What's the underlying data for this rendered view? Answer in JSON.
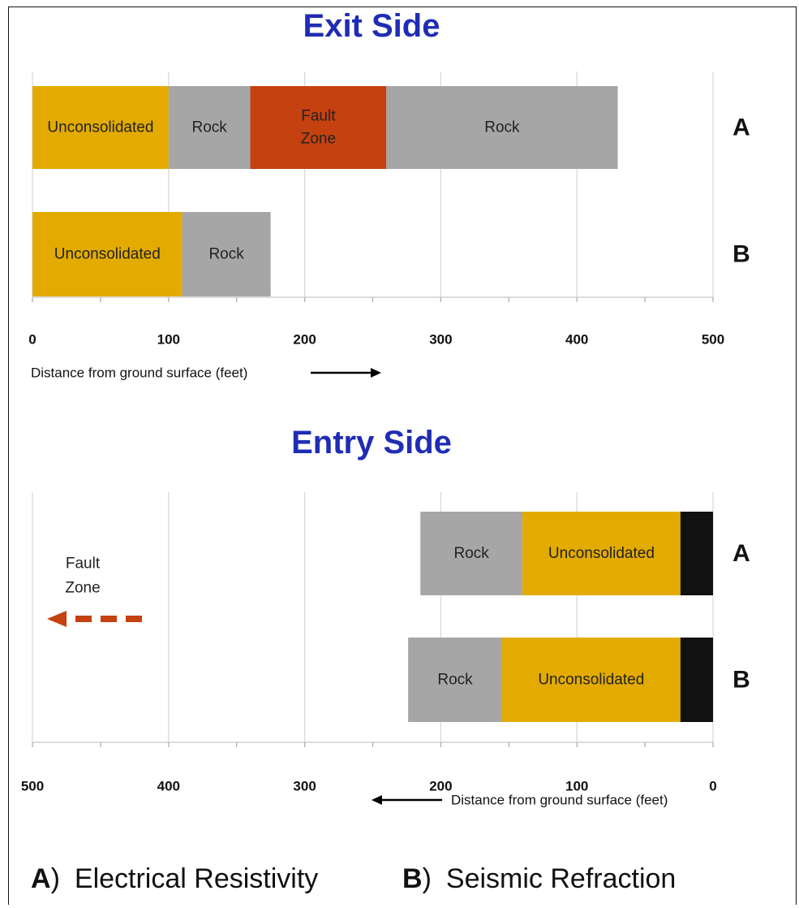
{
  "chart_data": [
    {
      "type": "bar",
      "orientation": "horizontal-stacked",
      "title": "Exit Side",
      "xlabel": "Distance from ground surface (feet)",
      "xlim": [
        0,
        500
      ],
      "x_ticks": [
        "0",
        "100",
        "200",
        "300",
        "400",
        "500"
      ],
      "grid": true,
      "rows": [
        {
          "name": "A",
          "segments": [
            {
              "label": "Unconsolidated",
              "start": 0,
              "end": 100,
              "color": "#e3ab00"
            },
            {
              "label": "Rock",
              "start": 100,
              "end": 160,
              "color": "#a6a6a6"
            },
            {
              "label": "Fault\nZone",
              "start": 160,
              "end": 260,
              "color": "#c5410f"
            },
            {
              "label": "Rock",
              "start": 260,
              "end": 430,
              "color": "#a6a6a6"
            }
          ]
        },
        {
          "name": "B",
          "segments": [
            {
              "label": "Unconsolidated",
              "start": 0,
              "end": 110,
              "color": "#e3ab00"
            },
            {
              "label": "Rock",
              "start": 110,
              "end": 175,
              "color": "#a6a6a6"
            }
          ]
        }
      ]
    },
    {
      "type": "bar",
      "orientation": "horizontal-stacked-reversed",
      "title": "Entry Side",
      "xlabel": "Distance from ground surface (feet)",
      "xlim": [
        500,
        0
      ],
      "x_ticks": [
        "500",
        "400",
        "300",
        "200",
        "100",
        "0"
      ],
      "grid": true,
      "annotation": {
        "text": "Fault\nZone",
        "arrow": "dashed-left",
        "color": "#c5410f"
      },
      "rows": [
        {
          "name": "A",
          "segments": [
            {
              "label": "",
              "start": 0,
              "end": 24,
              "color": "#111111"
            },
            {
              "label": "Unconsolidated",
              "start": 24,
              "end": 140,
              "color": "#e3ab00"
            },
            {
              "label": "Rock",
              "start": 140,
              "end": 215,
              "color": "#a6a6a6"
            }
          ]
        },
        {
          "name": "B",
          "segments": [
            {
              "label": "",
              "start": 0,
              "end": 24,
              "color": "#111111"
            },
            {
              "label": "Unconsolidated",
              "start": 24,
              "end": 155,
              "color": "#e3ab00"
            },
            {
              "label": "Rock",
              "start": 155,
              "end": 224,
              "color": "#a6a6a6"
            }
          ]
        }
      ]
    }
  ],
  "legend": [
    {
      "key": "A",
      "sep": ")",
      "label": "Electrical Resistivity"
    },
    {
      "key": "B",
      "sep": ")",
      "label": "Seismic Refraction"
    }
  ]
}
